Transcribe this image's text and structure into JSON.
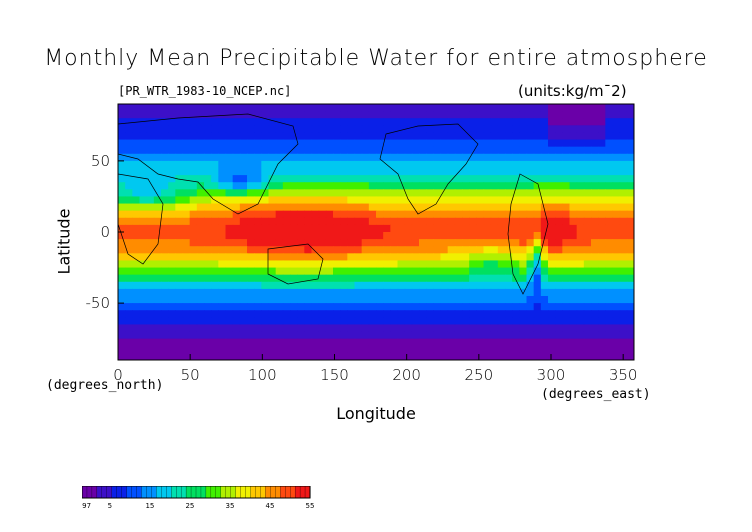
{
  "title": "Monthly Mean Precipitable Water for entire atmosphere",
  "file_label": "[PR_WTR_1983-10_NCEP.nc]",
  "units_label": "(units:kg/m^2)",
  "units_display": "(units:kg/m¯2)",
  "chart_data": {
    "type": "heatmap",
    "title": "Monthly Mean Precipitable Water for entire atmosphere",
    "xlabel": "Longitude",
    "ylabel": "Latitude",
    "x_units_label": "(degrees_east)",
    "y_units_label": "(degrees_north)",
    "xlim": [
      0,
      357.5
    ],
    "ylim": [
      -90,
      90
    ],
    "x_ticks": [
      0,
      50,
      100,
      150,
      200,
      250,
      300,
      350
    ],
    "y_ticks": [
      50,
      0,
      -50
    ],
    "colorbar_ticks": [
      "-1.97",
      "5",
      "15",
      "25",
      "35",
      "45",
      "55"
    ],
    "colorbar_range": [
      -1.97,
      55
    ],
    "zonal_mean_profile": {
      "latitude": [
        90,
        80,
        70,
        60,
        50,
        40,
        30,
        20,
        10,
        0,
        -10,
        -20,
        -30,
        -40,
        -50,
        -60,
        -70,
        -80,
        -90
      ],
      "value": [
        3,
        5,
        8,
        12,
        16,
        22,
        30,
        40,
        47,
        50,
        46,
        38,
        28,
        18,
        12,
        8,
        5,
        2,
        1
      ]
    }
  },
  "colors": {
    "colormap": [
      "#6a00a8",
      "#3c10c8",
      "#0a20e8",
      "#0050ff",
      "#0090ff",
      "#00c8f0",
      "#00e0b0",
      "#00e060",
      "#40f000",
      "#b0f000",
      "#f0f000",
      "#ffc800",
      "#ff8c00",
      "#ff4a10",
      "#f01818"
    ]
  }
}
